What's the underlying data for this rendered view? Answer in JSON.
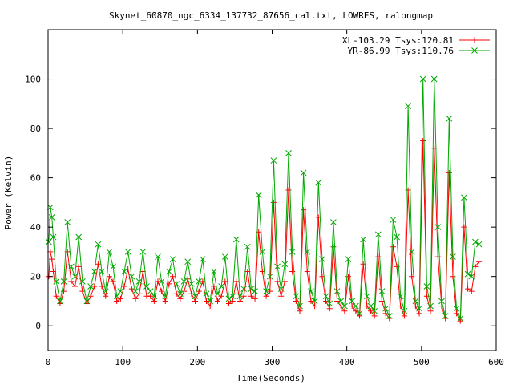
{
  "chart_data": {
    "type": "line",
    "title": "Skynet_60870_ngc_6334_137732_87656_cal.txt, LOWRES, ralongmap",
    "xlabel": "Time(Seconds)",
    "ylabel": "Power (Kelvin)",
    "xlim": [
      0,
      600
    ],
    "ylim": [
      -10,
      120
    ],
    "x_ticks": [
      0,
      100,
      200,
      300,
      400,
      500,
      600
    ],
    "y_ticks": [
      0,
      20,
      40,
      60,
      80,
      100
    ],
    "x_tick_labels": [
      "0",
      "100",
      "200",
      "300",
      "400",
      "500",
      "600"
    ],
    "y_tick_labels": [
      "0",
      "20",
      "40",
      "60",
      "80",
      "100"
    ],
    "grid": false,
    "legend_position": "top-right",
    "series": [
      {
        "name": "XL-103.29 Tsys:120.81",
        "color": "#ff0000",
        "marker": "plus",
        "x": [
          1,
          3,
          5,
          7,
          11,
          16,
          21,
          26,
          31,
          36,
          41,
          46,
          52,
          57,
          62,
          67,
          72,
          77,
          82,
          87,
          92,
          97,
          102,
          107,
          112,
          117,
          122,
          127,
          132,
          137,
          142,
          147,
          152,
          157,
          162,
          167,
          172,
          177,
          182,
          187,
          192,
          197,
          202,
          207,
          212,
          217,
          222,
          227,
          232,
          237,
          242,
          247,
          252,
          257,
          262,
          267,
          272,
          277,
          282,
          287,
          292,
          297,
          302,
          307,
          312,
          317,
          322,
          327,
          332,
          337,
          342,
          347,
          352,
          357,
          362,
          367,
          372,
          377,
          382,
          387,
          392,
          397,
          402,
          407,
          412,
          417,
          422,
          427,
          432,
          437,
          442,
          447,
          452,
          457,
          462,
          467,
          472,
          477,
          482,
          487,
          492,
          497,
          502,
          507,
          512,
          517,
          522,
          527,
          532,
          537,
          542,
          547,
          552,
          557,
          562,
          567,
          572,
          577
        ],
        "y": [
          20,
          30,
          27,
          22,
          12,
          9,
          14,
          30,
          18,
          16,
          24,
          14,
          9,
          12,
          16,
          25,
          16,
          12,
          20,
          18,
          10,
          11,
          16,
          23,
          15,
          11,
          13,
          22,
          12,
          12,
          10,
          18,
          14,
          10,
          17,
          20,
          13,
          11,
          14,
          19,
          13,
          10,
          14,
          18,
          10,
          8,
          16,
          10,
          12,
          18,
          9,
          10,
          18,
          10,
          12,
          22,
          12,
          11,
          38,
          22,
          12,
          14,
          50,
          18,
          12,
          18,
          55,
          22,
          10,
          6,
          47,
          22,
          10,
          8,
          44,
          20,
          10,
          7,
          32,
          10,
          8,
          6,
          20,
          8,
          6,
          4,
          25,
          8,
          6,
          4,
          28,
          10,
          5,
          3,
          32,
          24,
          8,
          4,
          55,
          20,
          8,
          5,
          75,
          12,
          6,
          72,
          28,
          8,
          3,
          62,
          20,
          5,
          2,
          40,
          15,
          14,
          24,
          26
        ]
      },
      {
        "name": "YR-86.99 Tsys:110.76",
        "color": "#00aa00",
        "marker": "x",
        "x": [
          1,
          3,
          5,
          7,
          11,
          16,
          21,
          26,
          31,
          36,
          41,
          46,
          52,
          57,
          62,
          67,
          72,
          77,
          82,
          87,
          92,
          97,
          102,
          107,
          112,
          117,
          122,
          127,
          132,
          137,
          142,
          147,
          152,
          157,
          162,
          167,
          172,
          177,
          182,
          187,
          192,
          197,
          202,
          207,
          212,
          217,
          222,
          227,
          232,
          237,
          242,
          247,
          252,
          257,
          262,
          267,
          272,
          277,
          282,
          287,
          292,
          297,
          302,
          307,
          312,
          317,
          322,
          327,
          332,
          337,
          342,
          347,
          352,
          357,
          362,
          367,
          372,
          377,
          382,
          387,
          392,
          397,
          402,
          407,
          412,
          417,
          422,
          427,
          432,
          437,
          442,
          447,
          452,
          457,
          462,
          467,
          472,
          477,
          482,
          487,
          492,
          497,
          502,
          507,
          512,
          517,
          522,
          527,
          532,
          537,
          542,
          547,
          552,
          557,
          562,
          567,
          572,
          577
        ],
        "y": [
          34,
          48,
          44,
          36,
          18,
          10,
          18,
          42,
          24,
          20,
          36,
          18,
          10,
          16,
          22,
          33,
          22,
          14,
          30,
          24,
          12,
          14,
          22,
          30,
          20,
          14,
          18,
          30,
          16,
          14,
          12,
          28,
          18,
          12,
          22,
          27,
          17,
          13,
          18,
          26,
          17,
          12,
          18,
          27,
          13,
          10,
          22,
          13,
          16,
          28,
          11,
          12,
          35,
          12,
          15,
          32,
          15,
          14,
          53,
          30,
          14,
          20,
          67,
          24,
          15,
          25,
          70,
          30,
          12,
          8,
          62,
          30,
          14,
          10,
          58,
          27,
          12,
          9,
          42,
          14,
          10,
          8,
          27,
          10,
          8,
          5,
          35,
          12,
          8,
          6,
          37,
          14,
          7,
          4,
          43,
          36,
          12,
          6,
          89,
          30,
          10,
          7,
          100,
          16,
          8,
          100,
          40,
          10,
          4,
          84,
          28,
          7,
          3,
          52,
          21,
          20,
          34,
          33
        ]
      }
    ]
  }
}
